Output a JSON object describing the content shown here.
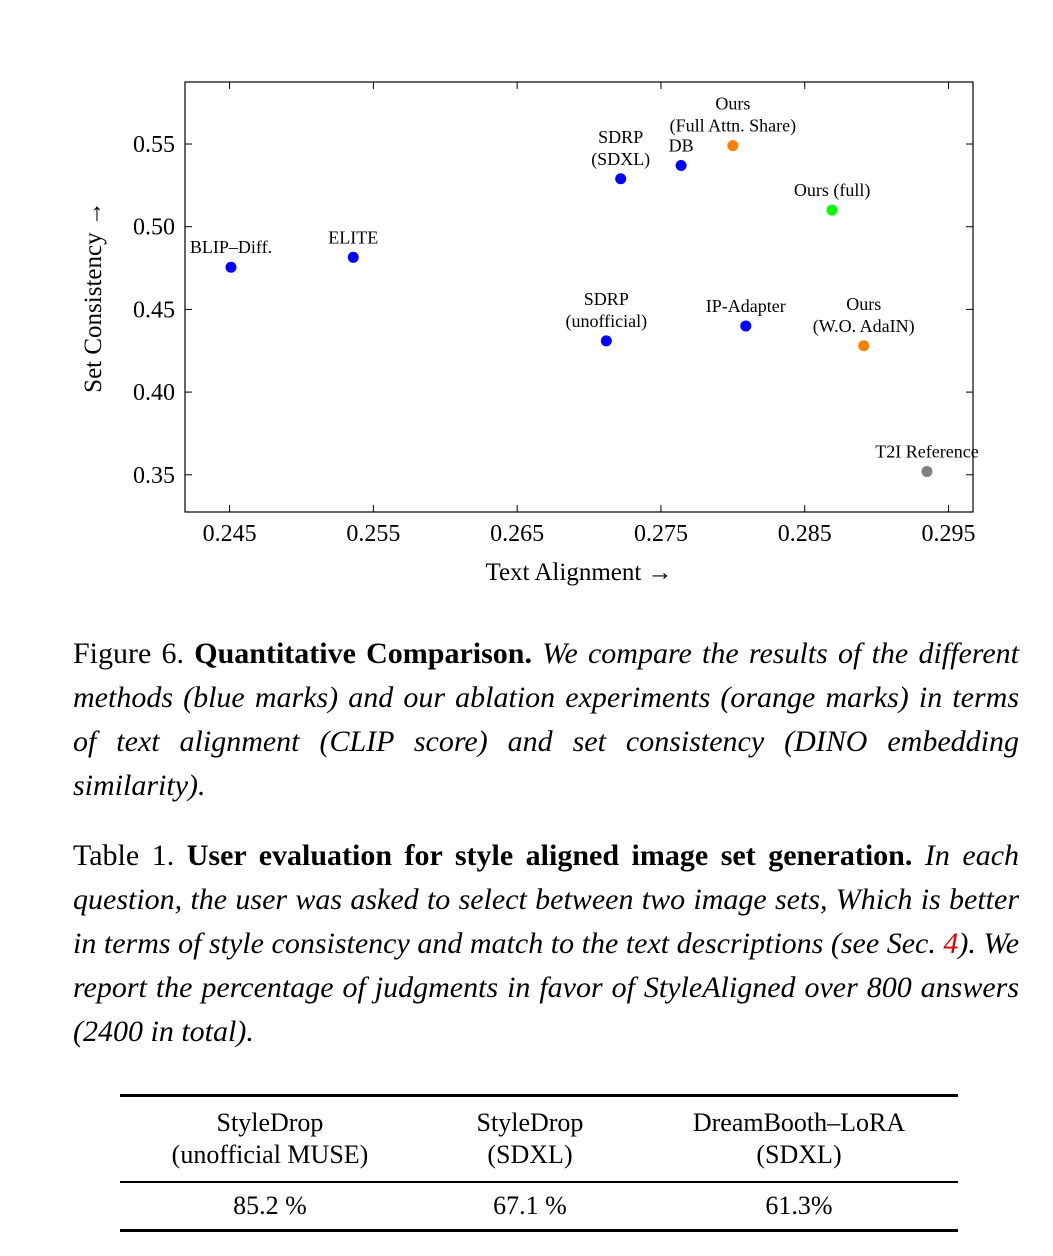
{
  "chart_data": {
    "type": "scatter",
    "xlabel": "Text Alignment →",
    "ylabel": "Set Consistency →",
    "xlim": [
      0.2419,
      0.2967
    ],
    "ylim": [
      0.3275,
      0.5875
    ],
    "xticks": [
      0.245,
      0.255,
      0.265,
      0.275,
      0.285,
      0.295
    ],
    "xtick_labels": [
      "0.245",
      "0.255",
      "0.265",
      "0.275",
      "0.285",
      "0.295"
    ],
    "yticks": [
      0.35,
      0.4,
      0.45,
      0.5,
      0.55
    ],
    "ytick_labels": [
      "0.35",
      "0.40",
      "0.45",
      "0.50",
      "0.55"
    ],
    "grid": false,
    "points": [
      {
        "label": [
          "BLIP–Diff."
        ],
        "x": 0.2451,
        "y": 0.4755,
        "color": "#0000ff"
      },
      {
        "label": [
          "ELITE"
        ],
        "x": 0.2536,
        "y": 0.4815,
        "color": "#0000ff"
      },
      {
        "label": [
          "SDRP",
          "(SDXL)"
        ],
        "x": 0.2722,
        "y": 0.529,
        "color": "#0000ff"
      },
      {
        "label": [
          "DB"
        ],
        "x": 0.2764,
        "y": 0.537,
        "color": "#0000ff"
      },
      {
        "label": [
          "Ours",
          "(Full Attn. Share)"
        ],
        "x": 0.28,
        "y": 0.549,
        "color": "#ff8000"
      },
      {
        "label": [
          "Ours (full)"
        ],
        "x": 0.2869,
        "y": 0.51,
        "color": "#00ff00"
      },
      {
        "label": [
          "SDRP",
          "(unofficial)"
        ],
        "x": 0.2712,
        "y": 0.431,
        "color": "#0000ff"
      },
      {
        "label": [
          "IP-Adapter"
        ],
        "x": 0.2809,
        "y": 0.44,
        "color": "#0000ff"
      },
      {
        "label": [
          "Ours",
          "(W.O. AdaIN)"
        ],
        "x": 0.2891,
        "y": 0.428,
        "color": "#ff8000"
      },
      {
        "label": [
          "T2I Reference"
        ],
        "x": 0.2935,
        "y": 0.352,
        "color": "#808080"
      }
    ]
  },
  "figure_caption": {
    "number": "Figure 6.",
    "title": "Quantitative Comparison.",
    "body": "We compare the results of the different methods (blue marks) and our ablation experiments (orange marks) in terms of text alignment (CLIP score) and set consistency (DINO embedding similarity)."
  },
  "table_caption": {
    "number": "Table 1.",
    "title": "User evaluation for style aligned image set generation.",
    "body_before_ref": "In each question, the user was asked to select between two image sets, Which is better in terms of style consistency and match to the text descriptions (see Sec.",
    "ref": "4",
    "body_after_ref": "). We report the percentage of judgments in favor of StyleAligned over 800 answers (2400 in total)."
  },
  "table": {
    "headers": [
      {
        "line1": "StyleDrop",
        "line2": "(unofficial MUSE)"
      },
      {
        "line1": "StyleDrop",
        "line2": "(SDXL)"
      },
      {
        "line1": "DreamBooth–LoRA",
        "line2": "(SDXL)"
      }
    ],
    "rows": [
      [
        "85.2 %",
        "67.1 %",
        "61.3%"
      ]
    ]
  }
}
